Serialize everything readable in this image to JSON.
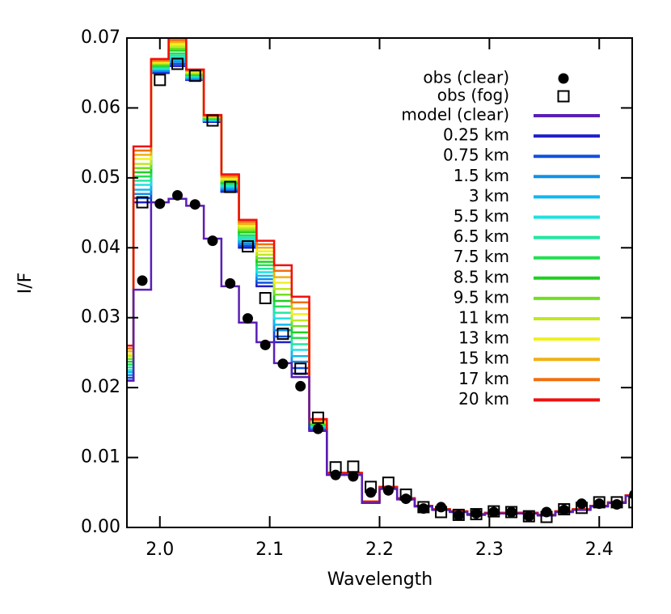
{
  "chart_data": {
    "type": "step",
    "x_label": "Wavelength",
    "y_label": "I/F",
    "xlim": [
      1.97,
      2.43
    ],
    "ylim": [
      0,
      0.07
    ],
    "xticks": [
      {
        "value": 2,
        "label": "2.0"
      },
      2.1,
      2.2,
      2.3,
      2.4
    ],
    "yticks": [
      {
        "value": 0,
        "label": "0.00"
      },
      {
        "value": 0.01,
        "label": "0.01"
      },
      {
        "value": 0.02,
        "label": "0.02"
      },
      {
        "value": 0.03,
        "label": "0.03"
      },
      {
        "value": 0.04,
        "label": "0.04"
      },
      {
        "value": 0.05,
        "label": "0.05"
      },
      {
        "value": 0.06,
        "label": "0.06"
      },
      {
        "value": 0.07,
        "label": "0.07"
      }
    ],
    "bin_width": 0.016,
    "x": [
      1.968,
      1.984,
      2.0,
      2.016,
      2.032,
      2.048,
      2.064,
      2.08,
      2.096,
      2.112,
      2.128,
      2.144,
      2.16,
      2.176,
      2.192,
      2.208,
      2.224,
      2.24,
      2.256,
      2.272,
      2.288,
      2.304,
      2.32,
      2.336,
      2.352,
      2.368,
      2.384,
      2.4,
      2.416,
      2.432
    ],
    "series": [
      {
        "name": "obs (clear)",
        "kind": "marker",
        "marker": "dot",
        "color": "#000000",
        "values": [
          null,
          0.0353,
          0.0463,
          0.0475,
          0.0462,
          0.041,
          0.0349,
          0.0299,
          0.0261,
          0.0234,
          0.0202,
          0.0141,
          0.0075,
          0.0073,
          0.005,
          0.0053,
          0.0041,
          0.0027,
          0.0029,
          0.0017,
          0.002,
          0.0022,
          0.0022,
          0.0016,
          0.0022,
          0.0025,
          0.0034,
          0.0034,
          0.0033,
          0.0047
        ]
      },
      {
        "name": "obs (fog)",
        "kind": "marker",
        "marker": "square",
        "color": "#000000",
        "values": [
          null,
          0.0465,
          0.064,
          0.0663,
          0.0646,
          0.0582,
          0.0487,
          0.0402,
          0.0328,
          0.0277,
          0.0227,
          0.0157,
          0.0086,
          0.0087,
          0.0058,
          0.0064,
          0.0047,
          0.0029,
          0.0022,
          0.0018,
          0.0019,
          0.0023,
          0.0022,
          0.0016,
          0.0015,
          0.0026,
          0.0028,
          0.0036,
          0.0036,
          0.0036
        ]
      },
      {
        "name": "model (clear)",
        "kind": "step",
        "color": "#5a1fb5",
        "values": [
          0.021,
          0.034,
          0.0465,
          0.047,
          0.046,
          0.0413,
          0.0345,
          0.0293,
          0.0265,
          0.0235,
          0.0215,
          0.0138,
          0.0075,
          0.0075,
          0.0035,
          0.0055,
          0.004,
          0.003,
          0.0025,
          0.0022,
          0.0018,
          0.002,
          0.002,
          0.002,
          0.0017,
          0.0022,
          0.0025,
          0.003,
          0.0035,
          0.0045
        ]
      },
      {
        "name": "0.25 km",
        "kind": "step",
        "color": "#2020c8",
        "values": [
          0.021,
          0.0465,
          0.065,
          0.066,
          0.064,
          0.058,
          0.048,
          0.04,
          0.0345,
          0.0265,
          0.022,
          0.014,
          0.0078,
          0.0078,
          0.0037,
          0.0058,
          0.0042,
          0.0031,
          0.0026,
          0.0023,
          0.0019,
          0.0021,
          0.0021,
          0.0021,
          0.0018,
          0.0023,
          0.0026,
          0.0031,
          0.0036,
          0.0046
        ]
      },
      {
        "name": "0.75 km",
        "kind": "step",
        "color": "#1050e0",
        "values": [
          0.0214,
          0.0471,
          0.0652,
          0.0663,
          0.0641,
          0.0581,
          0.0482,
          0.0403,
          0.035,
          0.0273,
          0.0228,
          0.0141,
          0.0078,
          0.0078,
          0.0037,
          0.0058,
          0.0042,
          0.0031,
          0.0026,
          0.0023,
          0.0019,
          0.0021,
          0.0021,
          0.0021,
          0.0018,
          0.0023,
          0.0026,
          0.0031,
          0.0036,
          0.0046
        ]
      },
      {
        "name": "1.5 km",
        "kind": "step",
        "color": "#1090e8",
        "values": [
          0.0218,
          0.0477,
          0.0653,
          0.0666,
          0.0642,
          0.0582,
          0.0484,
          0.0406,
          0.0355,
          0.0282,
          0.0237,
          0.0142,
          0.0078,
          0.0078,
          0.0037,
          0.0058,
          0.0042,
          0.0031,
          0.0026,
          0.0023,
          0.0019,
          0.0021,
          0.0021,
          0.0021,
          0.0018,
          0.0023,
          0.0026,
          0.0031,
          0.0036,
          0.0046
        ]
      },
      {
        "name": "3 km",
        "kind": "step",
        "color": "#10b8f0",
        "values": [
          0.0222,
          0.0483,
          0.0655,
          0.0669,
          0.0643,
          0.0582,
          0.0486,
          0.0409,
          0.036,
          0.029,
          0.0245,
          0.0143,
          0.0078,
          0.0078,
          0.0037,
          0.0058,
          0.0042,
          0.0031,
          0.0026,
          0.0023,
          0.0019,
          0.0021,
          0.0021,
          0.0021,
          0.0018,
          0.0023,
          0.0026,
          0.0031,
          0.0036,
          0.0046
        ]
      },
      {
        "name": "5.5 km",
        "kind": "step",
        "color": "#20e0e0",
        "values": [
          0.0225,
          0.049,
          0.0656,
          0.0672,
          0.0645,
          0.0583,
          0.0488,
          0.0412,
          0.0365,
          0.0299,
          0.0254,
          0.0145,
          0.0078,
          0.0078,
          0.0037,
          0.0058,
          0.0042,
          0.0031,
          0.0026,
          0.0023,
          0.0019,
          0.0021,
          0.0021,
          0.0021,
          0.0018,
          0.0023,
          0.0026,
          0.0031,
          0.0036,
          0.0046
        ]
      },
      {
        "name": "6.5 km",
        "kind": "step",
        "color": "#20e8a0",
        "values": [
          0.0229,
          0.0496,
          0.0658,
          0.0675,
          0.0646,
          0.0584,
          0.049,
          0.0415,
          0.037,
          0.0307,
          0.0262,
          0.0146,
          0.0078,
          0.0078,
          0.0037,
          0.0058,
          0.0042,
          0.0031,
          0.0026,
          0.0023,
          0.0019,
          0.0021,
          0.0021,
          0.0021,
          0.0018,
          0.0023,
          0.0026,
          0.0031,
          0.0036,
          0.0046
        ]
      },
      {
        "name": "7.5 km",
        "kind": "step",
        "color": "#20e050",
        "values": [
          0.0233,
          0.0502,
          0.0659,
          0.0678,
          0.0647,
          0.0585,
          0.0492,
          0.0418,
          0.0375,
          0.0316,
          0.0271,
          0.0147,
          0.0078,
          0.0078,
          0.0037,
          0.0058,
          0.0042,
          0.0031,
          0.0026,
          0.0023,
          0.0019,
          0.0021,
          0.0021,
          0.0021,
          0.0018,
          0.0023,
          0.0026,
          0.0031,
          0.0036,
          0.0046
        ]
      },
      {
        "name": "8.5 km",
        "kind": "step",
        "color": "#20d020",
        "values": [
          0.0237,
          0.0508,
          0.0661,
          0.0682,
          0.0648,
          0.0585,
          0.0493,
          0.0422,
          0.038,
          0.0324,
          0.0279,
          0.0148,
          0.0078,
          0.0078,
          0.0037,
          0.0058,
          0.0042,
          0.0031,
          0.0026,
          0.0023,
          0.0019,
          0.0021,
          0.0021,
          0.0021,
          0.0018,
          0.0023,
          0.0026,
          0.0031,
          0.0036,
          0.0046
        ]
      },
      {
        "name": "9.5 km",
        "kind": "step",
        "color": "#70e020",
        "values": [
          0.0241,
          0.0514,
          0.0662,
          0.0685,
          0.0649,
          0.0586,
          0.0495,
          0.0425,
          0.0385,
          0.0333,
          0.0288,
          0.0149,
          0.0078,
          0.0078,
          0.0037,
          0.0058,
          0.0042,
          0.0031,
          0.0026,
          0.0023,
          0.0019,
          0.0021,
          0.0021,
          0.0021,
          0.0018,
          0.0023,
          0.0026,
          0.0031,
          0.0036,
          0.0046
        ]
      },
      {
        "name": "11 km",
        "kind": "step",
        "color": "#c0e820",
        "values": [
          0.0245,
          0.052,
          0.0664,
          0.0688,
          0.065,
          0.0587,
          0.0497,
          0.0428,
          0.039,
          0.0341,
          0.0296,
          0.015,
          0.0078,
          0.0078,
          0.0037,
          0.0058,
          0.0042,
          0.0031,
          0.0026,
          0.0023,
          0.0019,
          0.0021,
          0.0021,
          0.0021,
          0.0018,
          0.0023,
          0.0026,
          0.0031,
          0.0036,
          0.0046
        ]
      },
      {
        "name": "13 km",
        "kind": "step",
        "color": "#f0f020",
        "values": [
          0.0248,
          0.0527,
          0.0665,
          0.0691,
          0.0652,
          0.0588,
          0.0499,
          0.0431,
          0.0395,
          0.035,
          0.0305,
          0.0152,
          0.0078,
          0.0078,
          0.0037,
          0.0058,
          0.0042,
          0.0031,
          0.0026,
          0.0023,
          0.0019,
          0.0021,
          0.0021,
          0.0021,
          0.0018,
          0.0023,
          0.0026,
          0.0031,
          0.0036,
          0.0046
        ]
      },
      {
        "name": "15 km",
        "kind": "step",
        "color": "#f0b010",
        "values": [
          0.0252,
          0.0533,
          0.0667,
          0.0694,
          0.0653,
          0.0588,
          0.0501,
          0.0434,
          0.04,
          0.0358,
          0.0313,
          0.0153,
          0.0078,
          0.0078,
          0.0037,
          0.0058,
          0.0042,
          0.0031,
          0.0026,
          0.0023,
          0.0019,
          0.0021,
          0.0021,
          0.0021,
          0.0018,
          0.0023,
          0.0026,
          0.0031,
          0.0036,
          0.0046
        ]
      },
      {
        "name": "17 km",
        "kind": "step",
        "color": "#f07010",
        "values": [
          0.0256,
          0.0539,
          0.0668,
          0.0697,
          0.0654,
          0.0589,
          0.0503,
          0.0437,
          0.0405,
          0.0367,
          0.0322,
          0.0154,
          0.0078,
          0.0078,
          0.0037,
          0.0058,
          0.0042,
          0.0031,
          0.0026,
          0.0023,
          0.0019,
          0.0021,
          0.0021,
          0.0021,
          0.0018,
          0.0023,
          0.0026,
          0.0031,
          0.0036,
          0.0046
        ]
      },
      {
        "name": "20 km",
        "kind": "step",
        "color": "#f01010",
        "values": [
          0.026,
          0.0545,
          0.067,
          0.07,
          0.0655,
          0.059,
          0.0505,
          0.044,
          0.041,
          0.0375,
          0.033,
          0.0155,
          0.0078,
          0.0078,
          0.0037,
          0.0058,
          0.0042,
          0.0031,
          0.0026,
          0.0023,
          0.0019,
          0.0021,
          0.0021,
          0.0021,
          0.0018,
          0.0023,
          0.0026,
          0.0031,
          0.0036,
          0.0046
        ]
      }
    ]
  }
}
